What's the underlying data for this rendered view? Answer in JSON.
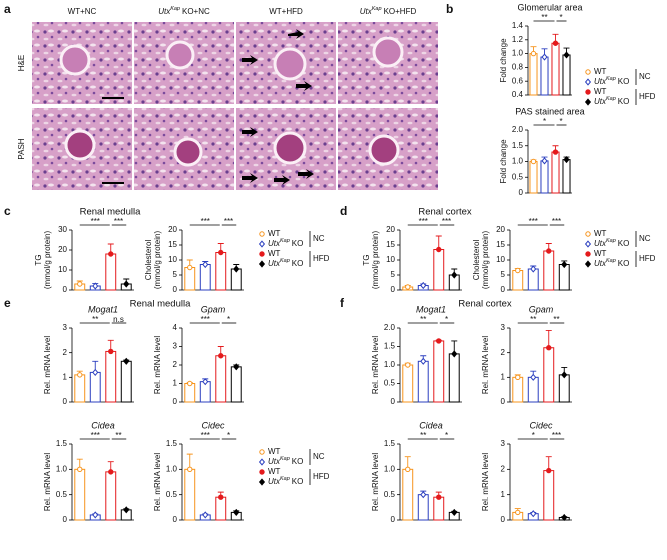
{
  "panels": [
    {
      "label": "a"
    },
    {
      "label": "b"
    },
    {
      "label": "c",
      "title": "Renal medulla"
    },
    {
      "label": "d",
      "title": "Renal cortex"
    },
    {
      "label": "e",
      "title": "Renal medulla"
    },
    {
      "label": "f",
      "title": "Renal cortex"
    }
  ],
  "histology": {
    "columns": [
      {
        "text": "WT+NC"
      },
      {
        "text": "Utx",
        "sup": "Kap",
        "after": "KO+NC"
      },
      {
        "text": "WT+HFD"
      },
      {
        "text": "Utx",
        "sup": "Kap",
        "after": "KO+HFD"
      }
    ],
    "rows": [
      "H&E",
      "PASH"
    ]
  },
  "legend": {
    "series": [
      {
        "name": {
          "text": "WT"
        },
        "color": "#f7941d",
        "marker": "circle",
        "filled": false
      },
      {
        "name": {
          "text": "Utx",
          "sup": "Kap",
          "after": "KO"
        },
        "color": "#2b3fbf",
        "marker": "diamond",
        "filled": false
      },
      {
        "name": {
          "text": "WT"
        },
        "color": "#e41a1c",
        "marker": "circle",
        "filled": true
      },
      {
        "name": {
          "text": "Utx",
          "sup": "Kap",
          "after": "KO"
        },
        "color": "#000000",
        "marker": "diamond",
        "filled": true
      }
    ],
    "groups": [
      "NC",
      "HFD"
    ]
  },
  "chart_data": [
    {
      "type": "bar",
      "title": "Glomerular area",
      "ylabel": [
        "Fold change"
      ],
      "values": [
        1.0,
        0.95,
        1.15,
        0.98
      ],
      "errors": [
        0.1,
        0.12,
        0.13,
        0.1
      ],
      "ylim": [
        0.4,
        1.4
      ],
      "yticks": [
        0.4,
        0.6,
        0.8,
        {
          "value": 1,
          "label": "1.0"
        },
        1.2,
        1.4
      ],
      "annotations": [
        "**",
        "*"
      ]
    },
    {
      "type": "bar",
      "title": "PAS stained area",
      "ylabel": [
        "Fold change"
      ],
      "values": [
        1.0,
        1.02,
        1.3,
        1.06
      ],
      "errors": [
        0.05,
        0.12,
        0.2,
        0.08
      ],
      "ylim": [
        0,
        2
      ],
      "yticks": [
        0,
        0.5,
        {
          "value": 1,
          "label": "1.0"
        },
        1.5,
        {
          "value": 2,
          "label": "2.0"
        }
      ],
      "annotations": [
        "*",
        "*"
      ]
    },
    {
      "type": "bar",
      "ylabel": [
        "TG",
        "(mmol/g protein)"
      ],
      "values": [
        3,
        2,
        18,
        3
      ],
      "errors": [
        1.5,
        1.2,
        5,
        2.5
      ],
      "ylim": [
        0,
        30
      ],
      "yticks": [
        0,
        10,
        20,
        30
      ],
      "annotations": [
        "***",
        "***"
      ]
    },
    {
      "type": "bar",
      "ylabel": [
        "Cholesterol",
        "(mmol/g protein)"
      ],
      "values": [
        7.5,
        8.5,
        12.5,
        7
      ],
      "errors": [
        2.5,
        1,
        3,
        1.5
      ],
      "ylim": [
        0,
        20
      ],
      "yticks": [
        0,
        5,
        10,
        15,
        20
      ],
      "annotations": [
        "***",
        "***"
      ]
    },
    {
      "type": "bar",
      "ylabel": [
        "TG",
        "(mmol/g protein)"
      ],
      "values": [
        1,
        1.5,
        13.5,
        5
      ],
      "errors": [
        0.5,
        0.5,
        4.5,
        2
      ],
      "ylim": [
        0,
        20
      ],
      "yticks": [
        0,
        5,
        10,
        15,
        20
      ],
      "annotations": [
        "***",
        "***"
      ]
    },
    {
      "type": "bar",
      "ylabel": [
        "Cholesterol",
        "(mmol/g protein)"
      ],
      "values": [
        6.5,
        7,
        13,
        8.5
      ],
      "errors": [
        0.7,
        1,
        2.5,
        1.2
      ],
      "ylim": [
        0,
        20
      ],
      "yticks": [
        0,
        5,
        10,
        15,
        20
      ],
      "annotations": [
        "***",
        "***"
      ]
    },
    {
      "type": "bar",
      "title": "Mogat1",
      "ylabel": [
        "Rel. mRNA level"
      ],
      "values": [
        1.1,
        1.2,
        2.05,
        1.65
      ],
      "errors": [
        0.15,
        0.45,
        0.45,
        0.05
      ],
      "ylim": [
        0,
        3
      ],
      "yticks": [
        0,
        1,
        2,
        3
      ],
      "annotations": [
        "**",
        "n.s"
      ]
    },
    {
      "type": "bar",
      "title": "Gpam",
      "ylabel": [
        "Rel. mRNA level"
      ],
      "values": [
        1.0,
        1.1,
        2.5,
        1.9
      ],
      "errors": [
        0.05,
        0.15,
        0.5,
        0.1
      ],
      "ylim": [
        0,
        4
      ],
      "yticks": [
        0,
        1,
        2,
        3,
        4
      ],
      "annotations": [
        "***",
        "*"
      ]
    },
    {
      "type": "bar",
      "title": "Cidea",
      "ylabel": [
        "Rel. mRNA level"
      ],
      "values": [
        1.0,
        0.1,
        0.95,
        0.2
      ],
      "errors": [
        0.2,
        0.02,
        0.2,
        0.02
      ],
      "ylim": [
        0,
        1.5
      ],
      "yticks": [
        0,
        0.5,
        {
          "value": 1,
          "label": "1.0"
        },
        1.5
      ],
      "annotations": [
        "***",
        "**"
      ]
    },
    {
      "type": "bar",
      "title": "Cidec",
      "ylabel": [
        "Rel. mRNA level"
      ],
      "values": [
        1.0,
        0.1,
        0.45,
        0.15
      ],
      "errors": [
        0.3,
        0.02,
        0.1,
        0.03
      ],
      "ylim": [
        0,
        1.5
      ],
      "yticks": [
        0,
        0.5,
        {
          "value": 1,
          "label": "1.0"
        },
        1.5
      ],
      "annotations": [
        "***",
        "*"
      ]
    },
    {
      "type": "bar",
      "title": "Mogat1",
      "ylabel": [
        "Rel. mRNA level"
      ],
      "values": [
        1.0,
        1.1,
        1.65,
        1.3
      ],
      "errors": [
        0.05,
        0.15,
        0.02,
        0.35
      ],
      "ylim": [
        0,
        2
      ],
      "yticks": [
        0,
        0.5,
        {
          "value": 1,
          "label": "1.0"
        },
        1.5,
        {
          "value": 2,
          "label": "2.0"
        }
      ],
      "annotations": [
        "**",
        "*"
      ]
    },
    {
      "type": "bar",
      "title": "Gpam",
      "ylabel": [
        "Rel. mRNA level"
      ],
      "values": [
        1.0,
        1.0,
        2.2,
        1.1
      ],
      "errors": [
        0.1,
        0.25,
        0.7,
        0.3
      ],
      "ylim": [
        0,
        3
      ],
      "yticks": [
        0,
        1,
        2,
        3
      ],
      "annotations": [
        "**",
        "**"
      ]
    },
    {
      "type": "bar",
      "title": "Cidea",
      "ylabel": [
        "Rel. mRNA level"
      ],
      "values": [
        1.0,
        0.5,
        0.45,
        0.15
      ],
      "errors": [
        0.25,
        0.07,
        0.1,
        0.02
      ],
      "ylim": [
        0,
        1.5
      ],
      "yticks": [
        0,
        0.5,
        {
          "value": 1,
          "label": "1.0"
        },
        1.5
      ],
      "annotations": [
        "**",
        "*"
      ]
    },
    {
      "type": "bar",
      "title": "Cidec",
      "ylabel": [
        "Rel. mRNA level"
      ],
      "values": [
        0.3,
        0.25,
        1.95,
        0.1
      ],
      "errors": [
        0.15,
        0.05,
        0.55,
        0.03
      ],
      "ylim": [
        0,
        3
      ],
      "yticks": [
        0,
        1,
        2,
        3
      ],
      "annotations": [
        "*",
        "***"
      ]
    }
  ]
}
